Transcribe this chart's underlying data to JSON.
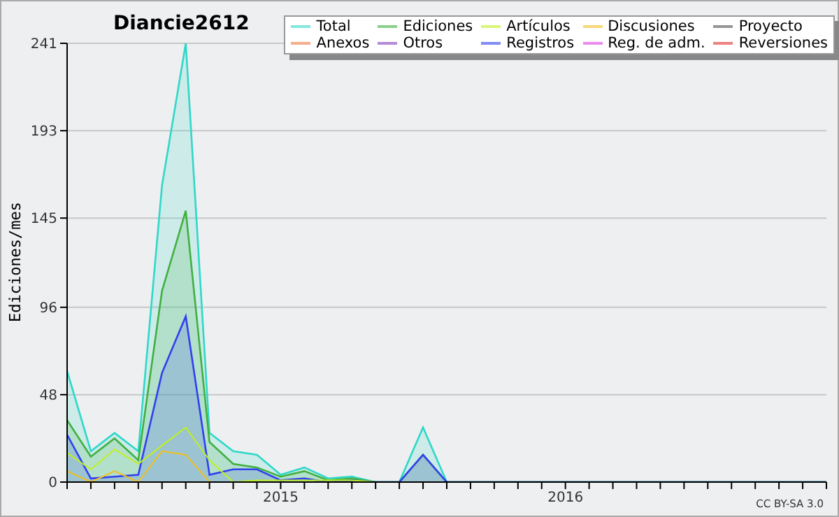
{
  "chart_data": {
    "type": "line",
    "title": "Diancie2612",
    "ylabel": "Ediciones/mes",
    "x": [
      "2014-04",
      "2014-05",
      "2014-06",
      "2014-07",
      "2014-08",
      "2014-09",
      "2014-10",
      "2014-11",
      "2014-12",
      "2015-01",
      "2015-02",
      "2015-03",
      "2015-04",
      "2015-05",
      "2015-06",
      "2015-07",
      "2015-08",
      "2015-09",
      "2015-10",
      "2015-11",
      "2015-12",
      "2016-01",
      "2016-02",
      "2016-03",
      "2016-04",
      "2016-05",
      "2016-06",
      "2016-07",
      "2016-08",
      "2016-09",
      "2016-10",
      "2016-11",
      "2016-12"
    ],
    "series": [
      {
        "name": "Total",
        "type": "area",
        "color": "#30d8c8",
        "values": [
          61,
          17,
          27,
          17,
          163,
          241,
          27,
          17,
          15,
          4,
          8,
          2,
          3,
          0,
          0,
          30,
          0,
          0,
          0,
          0,
          0,
          0,
          0,
          0,
          0,
          0,
          0,
          0,
          0,
          0,
          0,
          0,
          0
        ]
      },
      {
        "name": "Ediciones",
        "type": "area",
        "color": "#40b040",
        "values": [
          34,
          14,
          24,
          12,
          105,
          149,
          22,
          10,
          8,
          3,
          6,
          1,
          2,
          0,
          0,
          15,
          0,
          0,
          0,
          0,
          0,
          0,
          0,
          0,
          0,
          0,
          0,
          0,
          0,
          0,
          0,
          0,
          0
        ]
      },
      {
        "name": "Artículos",
        "color": "#c0f020",
        "values": [
          16,
          7,
          18,
          10,
          20,
          30,
          12,
          0,
          1,
          1,
          1,
          1,
          1,
          0,
          null,
          null,
          null,
          null,
          null,
          null,
          null,
          null,
          null,
          null,
          null,
          null,
          null,
          null,
          null,
          null,
          null,
          null,
          null
        ]
      },
      {
        "name": "Discusiones",
        "color": "#f0c020",
        "values": [
          6,
          0,
          6,
          0,
          17,
          15,
          0,
          null,
          null,
          null,
          null,
          null,
          null,
          null,
          null,
          null,
          null,
          null,
          null,
          null,
          null,
          null,
          null,
          null,
          null,
          null,
          null,
          null,
          null,
          null,
          null,
          null,
          null
        ]
      },
      {
        "name": "Proyecto",
        "color": "#505050",
        "values": [
          null,
          null,
          null,
          null,
          null,
          null,
          null,
          null,
          null,
          null,
          null,
          null,
          null,
          null,
          null,
          null,
          null,
          null,
          null,
          null,
          null,
          null,
          null,
          null,
          null,
          null,
          null,
          null,
          null,
          null,
          null,
          null,
          null
        ]
      },
      {
        "name": "Anexos",
        "color": "#f07840",
        "values": [
          null,
          null,
          null,
          null,
          null,
          null,
          null,
          null,
          null,
          null,
          null,
          null,
          null,
          null,
          null,
          null,
          null,
          null,
          null,
          null,
          null,
          null,
          null,
          null,
          null,
          null,
          null,
          null,
          null,
          null,
          null,
          null,
          null
        ]
      },
      {
        "name": "Otros",
        "color": "#8040c0",
        "values": [
          null,
          null,
          null,
          null,
          null,
          null,
          null,
          null,
          null,
          null,
          null,
          null,
          null,
          null,
          null,
          null,
          null,
          null,
          null,
          null,
          null,
          null,
          null,
          null,
          null,
          null,
          null,
          null,
          null,
          null,
          null,
          null,
          null
        ]
      },
      {
        "name": "Registros",
        "type": "area",
        "color": "#3040f0",
        "values": [
          26,
          2,
          3,
          4,
          60,
          91,
          4,
          7,
          7,
          1,
          2,
          0,
          1,
          0,
          0,
          15,
          0,
          0,
          0,
          0,
          0,
          0,
          0,
          0,
          0,
          0,
          0,
          0,
          0,
          0,
          0,
          0,
          0
        ]
      },
      {
        "name": "Reg. de adm.",
        "color": "#e040e0",
        "values": [
          null,
          null,
          null,
          null,
          null,
          null,
          null,
          null,
          null,
          null,
          null,
          null,
          null,
          null,
          null,
          null,
          null,
          null,
          null,
          null,
          null,
          null,
          null,
          null,
          null,
          null,
          null,
          null,
          null,
          null,
          null,
          null,
          null
        ]
      },
      {
        "name": "Reversiones",
        "color": "#e03030",
        "values": [
          null,
          null,
          null,
          null,
          null,
          null,
          null,
          null,
          null,
          null,
          null,
          null,
          null,
          null,
          null,
          null,
          null,
          null,
          null,
          null,
          null,
          null,
          null,
          null,
          null,
          null,
          null,
          null,
          null,
          null,
          null,
          null,
          null
        ]
      }
    ],
    "xlim": [
      "2014-04",
      "2016-12"
    ],
    "xticks": [
      {
        "value": "2014-04",
        "label": null
      },
      {
        "value": "2014-05",
        "label": null
      },
      {
        "value": "2014-06",
        "label": null
      },
      {
        "value": "2014-07",
        "label": null
      },
      {
        "value": "2014-08",
        "label": null
      },
      {
        "value": "2014-09",
        "label": null
      },
      {
        "value": "2014-10",
        "label": null
      },
      {
        "value": "2014-11",
        "label": null
      },
      {
        "value": "2014-12",
        "label": null
      },
      {
        "value": "2015-01",
        "label": "2015"
      },
      {
        "value": "2015-02",
        "label": null
      },
      {
        "value": "2015-03",
        "label": null
      },
      {
        "value": "2015-04",
        "label": null
      },
      {
        "value": "2015-05",
        "label": null
      },
      {
        "value": "2015-06",
        "label": null
      },
      {
        "value": "2015-07",
        "label": null
      },
      {
        "value": "2015-08",
        "label": null
      },
      {
        "value": "2015-09",
        "label": null
      },
      {
        "value": "2015-10",
        "label": null
      },
      {
        "value": "2015-11",
        "label": null
      },
      {
        "value": "2015-12",
        "label": null
      },
      {
        "value": "2016-01",
        "label": "2016"
      },
      {
        "value": "2016-02",
        "label": null
      },
      {
        "value": "2016-03",
        "label": null
      },
      {
        "value": "2016-04",
        "label": null
      },
      {
        "value": "2016-05",
        "label": null
      },
      {
        "value": "2016-06",
        "label": null
      },
      {
        "value": "2016-07",
        "label": null
      },
      {
        "value": "2016-08",
        "label": null
      },
      {
        "value": "2016-09",
        "label": null
      },
      {
        "value": "2016-10",
        "label": null
      },
      {
        "value": "2016-11",
        "label": null
      },
      {
        "value": "2016-12",
        "label": null
      }
    ],
    "ylim": [
      0,
      241
    ],
    "yticks": [
      0,
      48,
      96,
      145,
      193,
      241
    ],
    "grid": "y",
    "legend": "top right",
    "marker": "none",
    "line_style": "solid",
    "annotations": [
      "CC BY-SA 3.0"
    ]
  }
}
